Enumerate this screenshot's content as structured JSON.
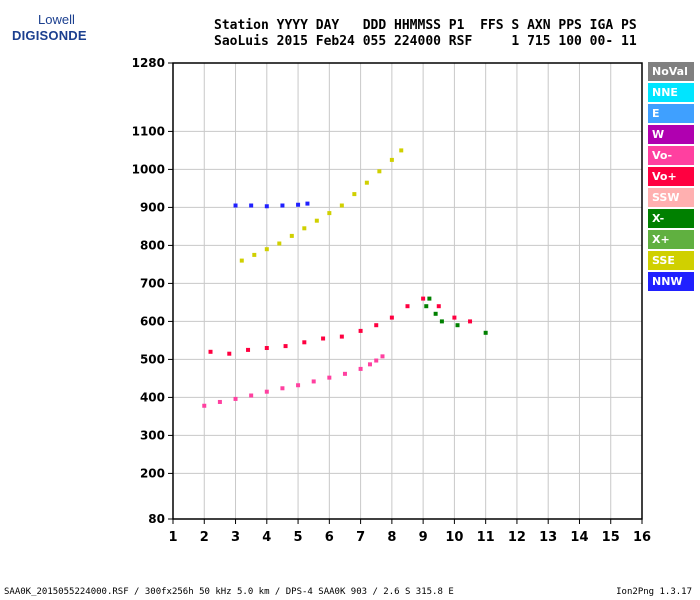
{
  "logo": {
    "top": "Lowell",
    "bottom": "DIGISONDE"
  },
  "header": {
    "line1": "Station YYYY DAY   DDD HHMMSS P1  FFS S AXN PPS IGA PS",
    "line2": "SaoLuis 2015 Feb24 055 224000 RSF     1 715 100 00- 11"
  },
  "legend": [
    {
      "label": "NoVal",
      "color": "#808080"
    },
    {
      "label": "NNE",
      "color": "#00e5ff"
    },
    {
      "label": "E",
      "color": "#3fa0ff"
    },
    {
      "label": "W",
      "color": "#b000b0"
    },
    {
      "label": "Vo-",
      "color": "#ff40a0"
    },
    {
      "label": "Vo+",
      "color": "#ff0040"
    },
    {
      "label": "SSW",
      "color": "#ffb0b0"
    },
    {
      "label": "X-",
      "color": "#008000"
    },
    {
      "label": "X+",
      "color": "#60b040"
    },
    {
      "label": "SSE",
      "color": "#d0d000"
    },
    {
      "label": "NNW",
      "color": "#2020ff"
    }
  ],
  "footer": {
    "left": "SAA0K_2015055224000.RSF / 300fx256h 50 kHz 5.0 km / DPS-4 SAA0K 903 / 2.6 S 315.8 E",
    "right": "Ion2Png 1.3.17"
  },
  "chart_data": {
    "type": "scatter",
    "xlim": [
      1,
      16
    ],
    "ylim": [
      80,
      1280
    ],
    "x_ticks": [
      1,
      2,
      3,
      4,
      5,
      6,
      7,
      8,
      9,
      10,
      11,
      12,
      13,
      14,
      15,
      16
    ],
    "y_ticks": [
      80,
      200,
      300,
      400,
      500,
      600,
      700,
      800,
      900,
      1000,
      1100,
      1280
    ],
    "grid": true,
    "series": [
      {
        "color": "#ff40a0",
        "points": [
          [
            2.0,
            378
          ],
          [
            2.5,
            388
          ],
          [
            3.0,
            396
          ],
          [
            3.5,
            405
          ],
          [
            4.0,
            415
          ],
          [
            4.5,
            424
          ],
          [
            5.0,
            432
          ],
          [
            5.5,
            442
          ],
          [
            6.0,
            452
          ],
          [
            6.5,
            462
          ],
          [
            7.0,
            475
          ],
          [
            7.3,
            487
          ],
          [
            7.5,
            497
          ],
          [
            7.7,
            508
          ]
        ]
      },
      {
        "color": "#d0d000",
        "points": [
          [
            3.2,
            760
          ],
          [
            3.6,
            775
          ],
          [
            4.0,
            790
          ],
          [
            4.4,
            805
          ],
          [
            4.8,
            825
          ],
          [
            5.2,
            845
          ],
          [
            5.6,
            865
          ],
          [
            6.0,
            885
          ],
          [
            6.4,
            905
          ],
          [
            6.8,
            935
          ],
          [
            7.2,
            965
          ],
          [
            7.6,
            995
          ],
          [
            8.0,
            1025
          ],
          [
            8.3,
            1050
          ]
        ]
      },
      {
        "color": "#2020ff",
        "points": [
          [
            3.0,
            905
          ],
          [
            3.5,
            905
          ],
          [
            4.0,
            903
          ],
          [
            4.5,
            905
          ],
          [
            5.0,
            907
          ],
          [
            5.3,
            910
          ]
        ]
      },
      {
        "color": "#ff0040",
        "points": [
          [
            2.2,
            520
          ],
          [
            2.8,
            515
          ],
          [
            3.4,
            525
          ],
          [
            4.0,
            530
          ],
          [
            4.6,
            535
          ],
          [
            5.2,
            545
          ],
          [
            5.8,
            555
          ],
          [
            6.4,
            560
          ],
          [
            7.0,
            575
          ],
          [
            7.5,
            590
          ],
          [
            8.0,
            610
          ],
          [
            8.5,
            640
          ],
          [
            9.0,
            660
          ],
          [
            9.5,
            640
          ],
          [
            10.0,
            610
          ],
          [
            10.5,
            600
          ]
        ]
      },
      {
        "color": "#008000",
        "points": [
          [
            9.1,
            640
          ],
          [
            9.2,
            660
          ],
          [
            9.4,
            620
          ],
          [
            9.6,
            600
          ],
          [
            10.1,
            590
          ],
          [
            11.0,
            570
          ]
        ]
      }
    ]
  }
}
